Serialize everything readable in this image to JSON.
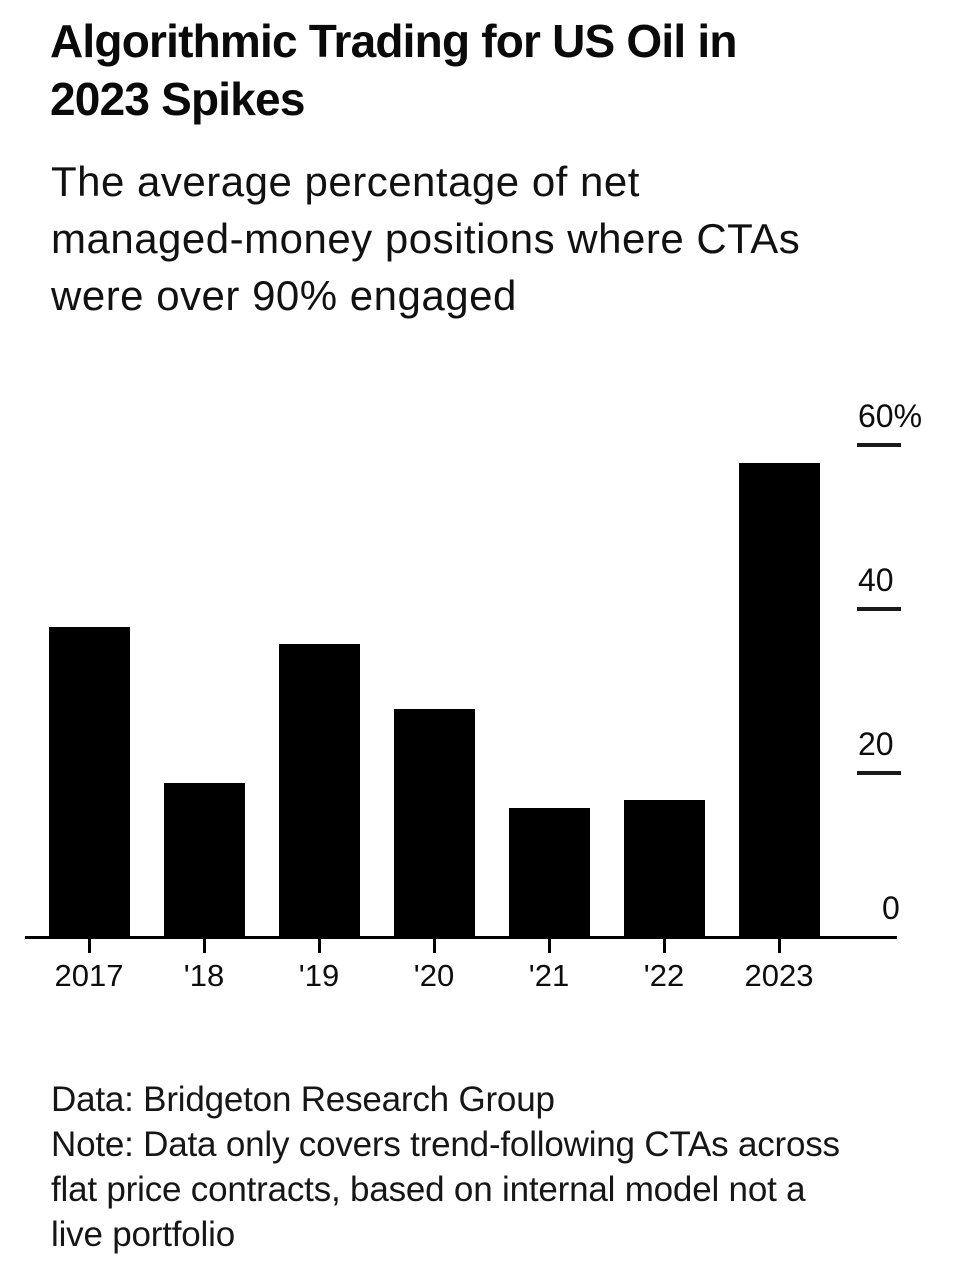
{
  "title": {
    "text": "Algorithmic Trading for US Oil in 2023 Spikes",
    "lines": [
      "Algorithmic Trading for US Oil in",
      "2023 Spikes"
    ]
  },
  "subtitle": {
    "text": "The average percentage of net managed-money positions where CTAs were over 90% engaged",
    "lines": [
      "The average percentage of net",
      "managed-money positions where CTAs",
      "were over 90% engaged"
    ]
  },
  "chart_data": {
    "type": "bar",
    "title": "Algorithmic Trading for US Oil in 2023 Spikes",
    "subtitle": "The average percentage of net managed-money positions where CTAs were over 90% engaged",
    "categories": [
      "2017",
      "'18",
      "'19",
      "'20",
      "'21",
      "'22",
      "2023"
    ],
    "values": [
      38,
      19,
      36,
      28,
      16,
      17,
      58
    ],
    "unit": "%",
    "ylim": [
      0,
      62
    ],
    "yticks": [
      {
        "value": 60,
        "label": "60%"
      },
      {
        "value": 40,
        "label": "40"
      },
      {
        "value": 20,
        "label": "20"
      },
      {
        "value": 0,
        "label": "0"
      }
    ],
    "legend": "none",
    "grid": "right-side tick dashes only",
    "bar_color": "#000000"
  },
  "footer": {
    "source": "Data: Bridgeton Research Group",
    "note": "Note: Data only covers trend-following CTAs across flat price contracts, based on internal model not a live portfolio",
    "lines": [
      "Data: Bridgeton Research Group",
      "Note: Data only covers trend-following CTAs across",
      "flat price contracts, based on internal model not a",
      "live portfolio"
    ]
  },
  "colors": {
    "background": "#ffffff",
    "text": "#0a0a0a",
    "bar": "#000000",
    "axis": "#000000"
  }
}
